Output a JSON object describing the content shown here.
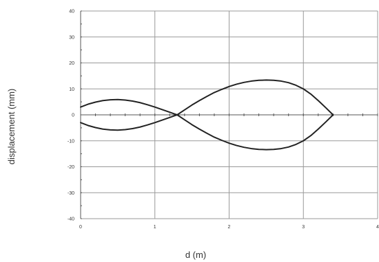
{
  "chart_data": {
    "type": "line",
    "title": "",
    "xlabel": "d (m)",
    "ylabel": "displacement (mm)",
    "xlim": [
      0,
      4
    ],
    "ylim": [
      -40,
      40
    ],
    "x_ticks": [
      0,
      1,
      2,
      3,
      4
    ],
    "y_ticks": [
      -40,
      -30,
      -20,
      -10,
      0,
      10,
      20,
      30,
      40
    ],
    "x_tick_labels": [
      "0",
      "1",
      "2",
      "3",
      "4"
    ],
    "y_tick_labels": [
      "-40",
      "-30",
      "-20",
      "-10",
      "0",
      "10",
      "20",
      "30",
      "40"
    ],
    "grid": true,
    "legend": "none",
    "colors": {
      "line": "#222222",
      "grid": "#999999",
      "axis": "#555555",
      "text": "#333333"
    },
    "series": [
      {
        "x": [
          0,
          0.1,
          0.2,
          0.3,
          0.4,
          0.5,
          0.6,
          0.7,
          0.8,
          0.9,
          1.0,
          1.1,
          1.2,
          1.3,
          1.4,
          1.5,
          1.6,
          1.7,
          1.8,
          1.9,
          2.0,
          2.1,
          2.2,
          2.3,
          2.4,
          2.5,
          2.6,
          2.7,
          2.8,
          2.9,
          3.0,
          3.1,
          3.2,
          3.3,
          3.4
        ],
        "values": [
          3,
          4.1,
          4.9,
          5.5,
          5.8,
          5.9,
          5.7,
          5.3,
          4.7,
          3.9,
          3.0,
          2.0,
          1.0,
          0,
          -1.9,
          -3.8,
          -5.5,
          -7.1,
          -8.6,
          -9.8,
          -10.9,
          -11.8,
          -12.5,
          -13.0,
          -13.3,
          -13.4,
          -13.3,
          -13.0,
          -12.4,
          -11.4,
          -10.0,
          -8.0,
          -5.5,
          -2.8,
          0
        ]
      },
      {
        "x": [
          0,
          0.1,
          0.2,
          0.3,
          0.4,
          0.5,
          0.6,
          0.7,
          0.8,
          0.9,
          1.0,
          1.1,
          1.2,
          1.3,
          1.4,
          1.5,
          1.6,
          1.7,
          1.8,
          1.9,
          2.0,
          2.1,
          2.2,
          2.3,
          2.4,
          2.5,
          2.6,
          2.7,
          2.8,
          2.9,
          3.0,
          3.1,
          3.2,
          3.3,
          3.4
        ],
        "values": [
          -3,
          -4.1,
          -4.9,
          -5.5,
          -5.8,
          -5.9,
          -5.7,
          -5.3,
          -4.7,
          -3.9,
          -3.0,
          -2.0,
          -1.0,
          0,
          1.9,
          3.8,
          5.5,
          7.1,
          8.6,
          9.8,
          10.9,
          11.8,
          12.5,
          13.0,
          13.3,
          13.4,
          13.3,
          13.0,
          12.4,
          11.4,
          10.0,
          8.0,
          5.5,
          2.8,
          0
        ]
      }
    ]
  }
}
